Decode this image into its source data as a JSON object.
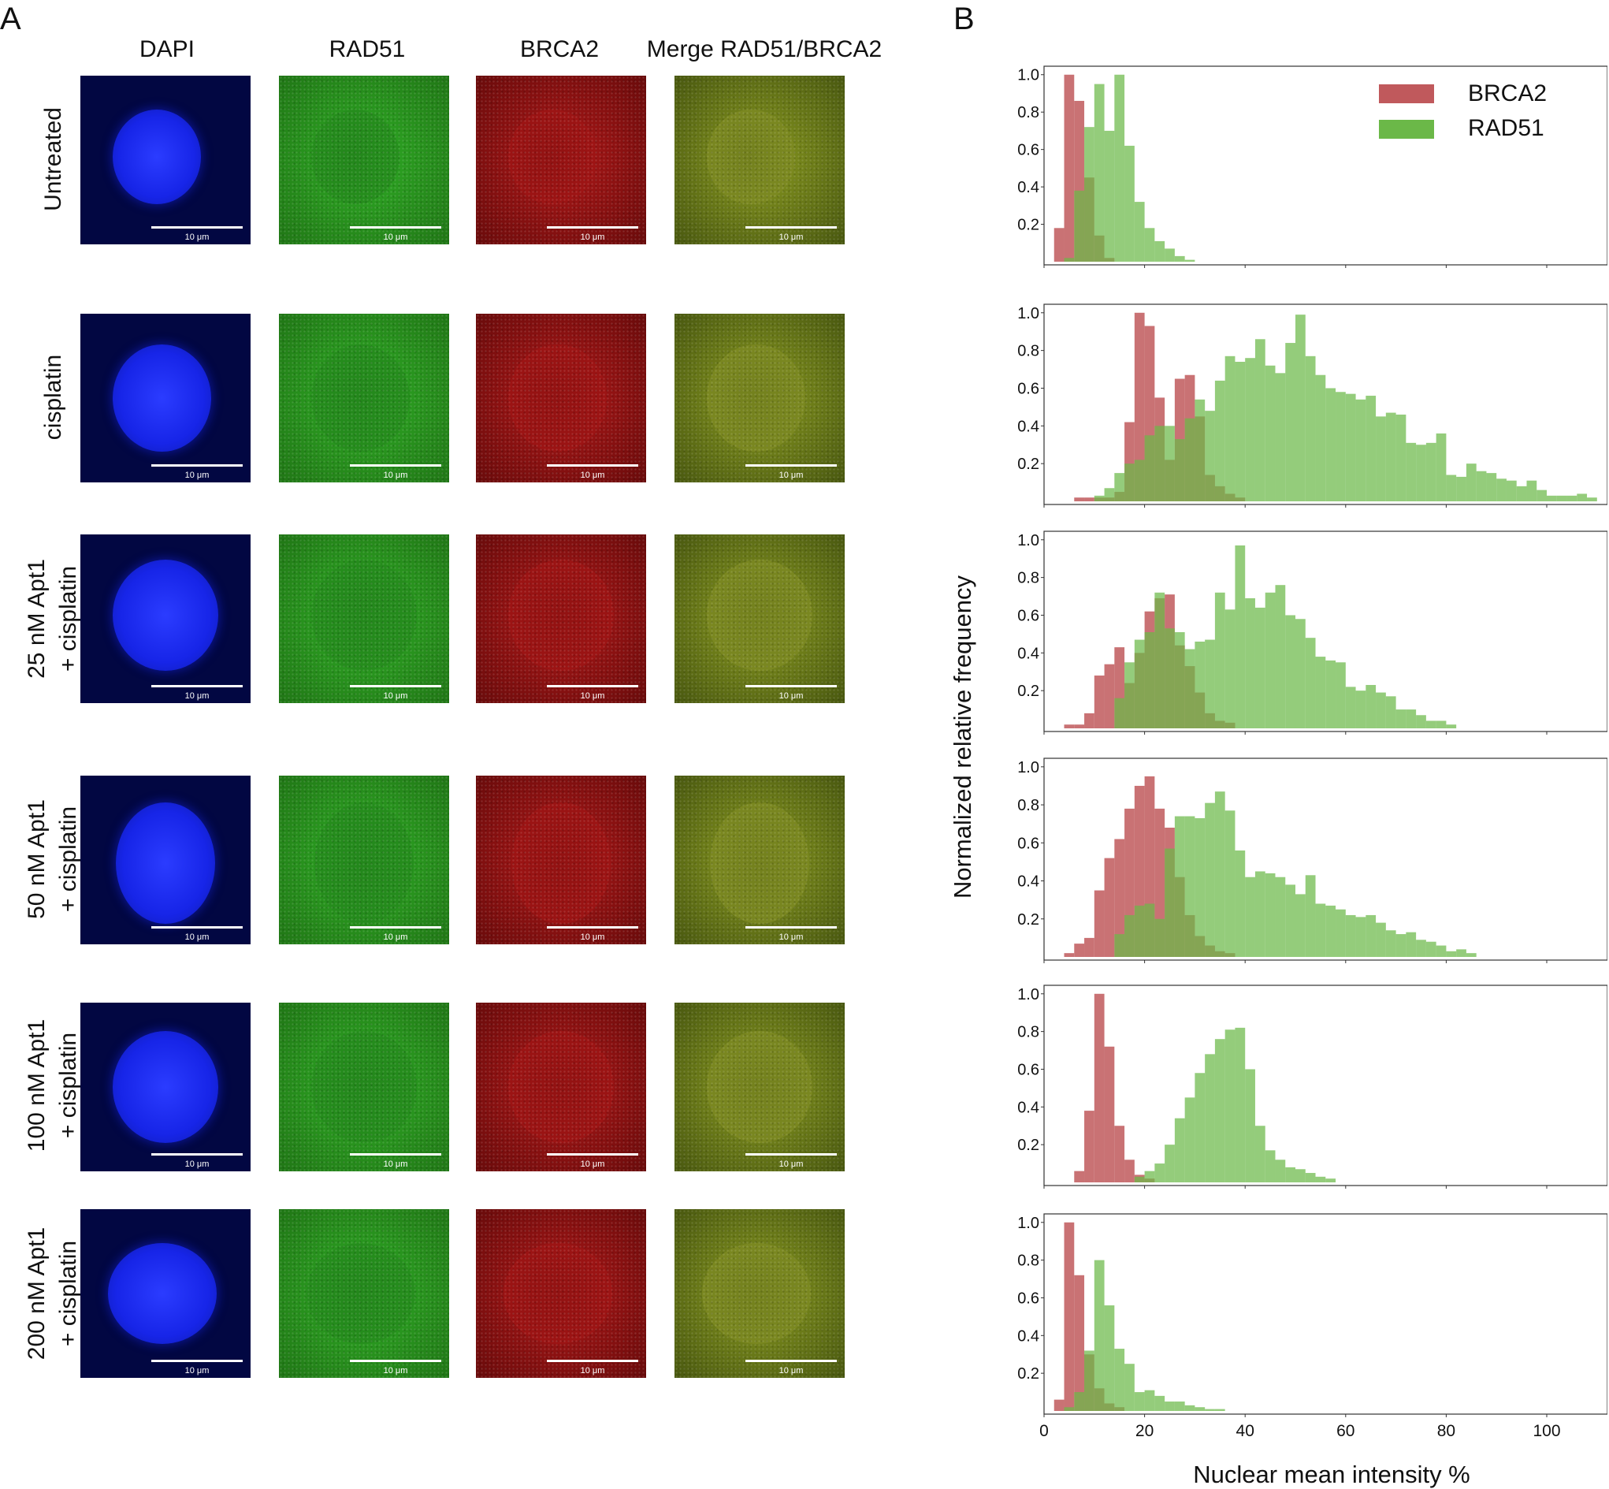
{
  "panels": {
    "a": "A",
    "b": "B"
  },
  "columns": [
    "DAPI",
    "RAD51",
    "BRCA2",
    "Merge RAD51/BRCA2"
  ],
  "rows": [
    {
      "lines": [
        "Untreated"
      ]
    },
    {
      "lines": [
        "cisplatin"
      ]
    },
    {
      "lines": [
        "25 nM Apt1",
        "+ cisplatin"
      ]
    },
    {
      "lines": [
        "50 nM Apt1",
        "+ cisplatin"
      ]
    },
    {
      "lines": [
        "100 nM Apt1",
        "+ cisplatin"
      ]
    },
    {
      "lines": [
        "200 nM Apt1",
        "+ cisplatin"
      ]
    }
  ],
  "scale_label": "10 μm",
  "colors": {
    "dapi": "#1a2cff",
    "dapi_bg": "#040a6a",
    "rad51": "#2fae25",
    "rad51_bg": "#1d6a12",
    "brca2": "#b01818",
    "brca2_bg": "#5a0808",
    "merge": "#8a9a20",
    "merge_bg": "#3b4a0c",
    "hist_brca2": "#c0595c",
    "hist_rad51": "#6bb848",
    "overlap": "#6f7a2a"
  },
  "chart_data": {
    "type": "histogram",
    "xlabel": "Nuclear mean intensity %",
    "ylabel": "Normalized relative frequency",
    "xlim": [
      0,
      110
    ],
    "xticks": [
      0,
      20,
      40,
      60,
      80,
      100
    ],
    "ylim": [
      0,
      1.02
    ],
    "yticks": [
      "0.2",
      "0.4",
      "0.6",
      "0.8",
      "1.0"
    ],
    "bin_width": 2,
    "legend": {
      "position": "top-right",
      "entries": [
        "BRCA2",
        "RAD51"
      ]
    },
    "subplots": [
      {
        "name": "Untreated",
        "series": [
          {
            "name": "BRCA2",
            "start": 2,
            "values": [
              0.18,
              1.0,
              0.86,
              0.45,
              0.14,
              0.02
            ]
          },
          {
            "name": "RAD51",
            "start": 4,
            "values": [
              0.02,
              0.38,
              0.72,
              0.95,
              0.7,
              1.0,
              0.62,
              0.32,
              0.18,
              0.11,
              0.07,
              0.03,
              0.01
            ]
          }
        ]
      },
      {
        "name": "cisplatin",
        "series": [
          {
            "name": "BRCA2",
            "start": 6,
            "values": [
              0.02,
              0.02,
              0.02,
              0.02,
              0.05,
              0.42,
              1.0,
              0.93,
              0.55,
              0.22,
              0.65,
              0.67,
              0.45,
              0.14,
              0.08,
              0.04,
              0.02
            ]
          },
          {
            "name": "RAD51",
            "start": 10,
            "values": [
              0.03,
              0.07,
              0.15,
              0.2,
              0.22,
              0.35,
              0.4,
              0.4,
              0.33,
              0.44,
              0.54,
              0.48,
              0.64,
              0.77,
              0.74,
              0.76,
              0.86,
              0.72,
              0.68,
              0.84,
              0.99,
              0.77,
              0.67,
              0.6,
              0.58,
              0.57,
              0.54,
              0.56,
              0.45,
              0.47,
              0.46,
              0.31,
              0.3,
              0.31,
              0.36,
              0.14,
              0.13,
              0.2,
              0.16,
              0.15,
              0.12,
              0.11,
              0.08,
              0.11,
              0.06,
              0.03,
              0.03,
              0.03,
              0.04,
              0.02
            ]
          }
        ]
      },
      {
        "name": "25 nM Apt1 + cisplatin",
        "series": [
          {
            "name": "BRCA2",
            "start": 4,
            "values": [
              0.02,
              0.02,
              0.08,
              0.28,
              0.34,
              0.43,
              0.24,
              0.4,
              0.62,
              0.69,
              0.71,
              0.44,
              0.33,
              0.19,
              0.08,
              0.04,
              0.03
            ]
          },
          {
            "name": "RAD51",
            "start": 14,
            "values": [
              0.16,
              0.35,
              0.47,
              0.51,
              0.72,
              0.53,
              0.51,
              0.42,
              0.46,
              0.47,
              0.72,
              0.63,
              0.97,
              0.69,
              0.64,
              0.72,
              0.76,
              0.6,
              0.58,
              0.48,
              0.38,
              0.36,
              0.35,
              0.22,
              0.2,
              0.23,
              0.19,
              0.17,
              0.1,
              0.1,
              0.07,
              0.04,
              0.04,
              0.02
            ]
          }
        ]
      },
      {
        "name": "50 nM Apt1 + cisplatin",
        "series": [
          {
            "name": "BRCA2",
            "start": 4,
            "values": [
              0.02,
              0.07,
              0.1,
              0.35,
              0.52,
              0.62,
              0.78,
              0.9,
              0.95,
              0.78,
              0.68,
              0.42,
              0.22,
              0.11,
              0.06,
              0.03,
              0.02
            ]
          },
          {
            "name": "RAD51",
            "start": 14,
            "values": [
              0.12,
              0.22,
              0.27,
              0.28,
              0.2,
              0.57,
              0.74,
              0.74,
              0.73,
              0.81,
              0.87,
              0.77,
              0.56,
              0.42,
              0.45,
              0.44,
              0.42,
              0.38,
              0.33,
              0.43,
              0.28,
              0.27,
              0.25,
              0.22,
              0.21,
              0.22,
              0.18,
              0.14,
              0.12,
              0.13,
              0.09,
              0.08,
              0.06,
              0.03,
              0.04,
              0.02
            ]
          }
        ]
      },
      {
        "name": "100 nM Apt1 + cisplatin",
        "series": [
          {
            "name": "BRCA2",
            "start": 6,
            "values": [
              0.06,
              0.38,
              1.0,
              0.72,
              0.3,
              0.12,
              0.04,
              0.02
            ]
          },
          {
            "name": "RAD51",
            "start": 18,
            "values": [
              0.03,
              0.06,
              0.1,
              0.2,
              0.34,
              0.45,
              0.58,
              0.68,
              0.76,
              0.81,
              0.82,
              0.6,
              0.3,
              0.17,
              0.12,
              0.08,
              0.07,
              0.05,
              0.03,
              0.02
            ]
          }
        ]
      },
      {
        "name": "200 nM Apt1 + cisplatin",
        "series": [
          {
            "name": "BRCA2",
            "start": 2,
            "values": [
              0.06,
              1.0,
              0.72,
              0.3,
              0.12,
              0.04,
              0.02
            ]
          },
          {
            "name": "RAD51",
            "start": 4,
            "values": [
              0.02,
              0.1,
              0.32,
              0.8,
              0.56,
              0.33,
              0.25,
              0.1,
              0.11,
              0.08,
              0.05,
              0.05,
              0.03,
              0.02,
              0.01,
              0.01
            ]
          }
        ]
      }
    ]
  }
}
